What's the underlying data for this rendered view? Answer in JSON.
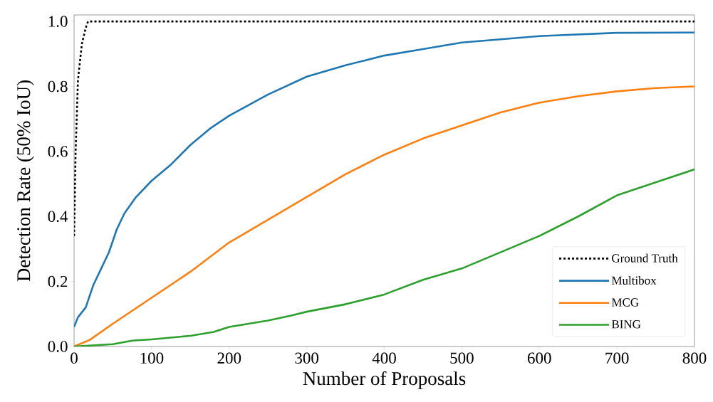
{
  "chart_data": {
    "type": "line",
    "xlabel": "Number of Proposals",
    "ylabel": "Detection Rate (50% IoU)",
    "xlim": [
      0,
      800
    ],
    "ylim": [
      0,
      1.02
    ],
    "xticks": [
      0,
      100,
      200,
      300,
      400,
      500,
      600,
      700,
      800
    ],
    "yticks": [
      {
        "value": 0,
        "label": "0.0"
      },
      {
        "value": 0.2,
        "label": "0.2"
      },
      {
        "value": 0.4,
        "label": "0.4"
      },
      {
        "value": 0.6,
        "label": "0.6"
      },
      {
        "value": 0.8,
        "label": "0.8"
      },
      {
        "value": 1.0,
        "label": "1.0"
      }
    ],
    "legend": "bottom right",
    "grid": false,
    "marker": "none",
    "series": [
      {
        "name": "Ground Truth",
        "color": "#000000",
        "line_style": "dotted",
        "x": [
          0,
          2,
          5,
          10,
          15,
          18,
          800
        ],
        "values": [
          0.34,
          0.6,
          0.82,
          0.93,
          0.98,
          1.0,
          1.0
        ]
      },
      {
        "name": "Multibox",
        "color": "#1f77b4",
        "x": [
          0,
          5,
          15,
          25,
          35,
          45,
          55,
          65,
          80,
          100,
          125,
          150,
          175,
          200,
          250,
          300,
          350,
          400,
          450,
          500,
          550,
          600,
          650,
          700,
          800
        ],
        "values": [
          0.06,
          0.09,
          0.12,
          0.19,
          0.24,
          0.29,
          0.36,
          0.41,
          0.46,
          0.51,
          0.56,
          0.62,
          0.67,
          0.71,
          0.775,
          0.83,
          0.865,
          0.895,
          0.915,
          0.935,
          0.945,
          0.955,
          0.96,
          0.965,
          0.966
        ]
      },
      {
        "name": "MCG",
        "color": "#ff7f0e",
        "x": [
          0,
          20,
          50,
          100,
          150,
          200,
          250,
          300,
          350,
          400,
          450,
          500,
          550,
          600,
          650,
          700,
          750,
          800
        ],
        "values": [
          0,
          0.02,
          0.07,
          0.15,
          0.23,
          0.32,
          0.39,
          0.46,
          0.53,
          0.59,
          0.64,
          0.68,
          0.72,
          0.75,
          0.77,
          0.785,
          0.795,
          0.8
        ]
      },
      {
        "name": "BING",
        "color": "#2ca02c",
        "x": [
          0,
          50,
          75,
          100,
          150,
          180,
          200,
          250,
          280,
          300,
          350,
          400,
          450,
          500,
          550,
          600,
          650,
          700,
          750,
          800
        ],
        "values": [
          0,
          0.007,
          0.018,
          0.022,
          0.033,
          0.045,
          0.06,
          0.08,
          0.095,
          0.107,
          0.13,
          0.16,
          0.205,
          0.24,
          0.29,
          0.34,
          0.4,
          0.465,
          0.505,
          0.545
        ]
      }
    ]
  }
}
